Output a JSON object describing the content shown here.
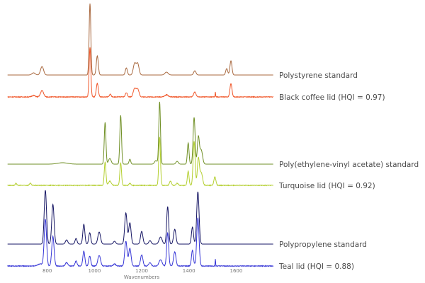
{
  "chart_data": {
    "type": "line",
    "title": "",
    "xlabel": "Wavenumbers",
    "ylabel": "",
    "xlim": [
      632,
      1757
    ],
    "xticks": [
      800,
      1000,
      1200,
      1400,
      1600
    ],
    "grid": false,
    "legend": "right, inline labels beside each trace",
    "peak_model": "gaussian sum, intensity in arbitrary units, width in wavenumbers",
    "series": [
      {
        "name": "Polystyrene standard",
        "color": "#a8683e",
        "peaks": [
          [
            742,
            3,
            10
          ],
          [
            778,
            12,
            9
          ],
          [
            981,
            101,
            5
          ],
          [
            1012,
            27,
            6
          ],
          [
            1135,
            10,
            6
          ],
          [
            1170,
            16,
            8
          ],
          [
            1183,
            16,
            8
          ],
          [
            1305,
            4,
            10
          ],
          [
            1425,
            6,
            7
          ],
          [
            1560,
            9,
            6
          ],
          [
            1578,
            20,
            6
          ]
        ]
      },
      {
        "name": "Black coffee lid (HQI = 0.97)",
        "color": "#f0572a",
        "peaks": [
          [
            742,
            2,
            10
          ],
          [
            778,
            9,
            9
          ],
          [
            981,
            70,
            5
          ],
          [
            1012,
            19,
            6
          ],
          [
            1067,
            4,
            5
          ],
          [
            1135,
            6,
            6
          ],
          [
            1170,
            12,
            8
          ],
          [
            1183,
            11,
            8
          ],
          [
            1305,
            3,
            10
          ],
          [
            1425,
            7,
            7
          ],
          [
            1512,
            7,
            1.5
          ],
          [
            1578,
            19,
            6
          ]
        ]
      },
      {
        "name": "Poly(ethylene-vinyl acetate) standard",
        "color": "#6f8f24",
        "peaks": [
          [
            865,
            2,
            30
          ],
          [
            1045,
            59,
            5
          ],
          [
            1065,
            8,
            8
          ],
          [
            1111,
            69,
            5
          ],
          [
            1150,
            7,
            5
          ],
          [
            1260,
            5,
            8
          ],
          [
            1276,
            88,
            5
          ],
          [
            1350,
            4,
            7
          ],
          [
            1397,
            30,
            5
          ],
          [
            1422,
            66,
            6
          ],
          [
            1440,
            38,
            6
          ],
          [
            1452,
            20,
            8
          ]
        ]
      },
      {
        "name": "Turquoise lid (HQI = 0.92)",
        "color": "#b4cf30",
        "peaks": [
          [
            668,
            3,
            4
          ],
          [
            728,
            3,
            5
          ],
          [
            1045,
            33,
            5
          ],
          [
            1065,
            6,
            8
          ],
          [
            1111,
            32,
            5
          ],
          [
            1150,
            3,
            5
          ],
          [
            1276,
            68,
            5
          ],
          [
            1322,
            6,
            6
          ],
          [
            1350,
            3,
            6
          ],
          [
            1397,
            20,
            5
          ],
          [
            1422,
            62,
            6
          ],
          [
            1440,
            38,
            6
          ],
          [
            1452,
            18,
            8
          ],
          [
            1510,
            12,
            6
          ]
        ]
      },
      {
        "name": "Polypropylene standard",
        "color": "#161664",
        "peaks": [
          [
            792,
            76,
            7
          ],
          [
            824,
            56,
            7
          ],
          [
            882,
            6,
            7
          ],
          [
            922,
            8,
            6
          ],
          [
            955,
            28,
            6
          ],
          [
            980,
            16,
            6
          ],
          [
            1020,
            17,
            8
          ],
          [
            1085,
            4,
            7
          ],
          [
            1133,
            44,
            7
          ],
          [
            1150,
            30,
            7
          ],
          [
            1200,
            18,
            7
          ],
          [
            1235,
            5,
            7
          ],
          [
            1280,
            10,
            9
          ],
          [
            1310,
            53,
            6
          ],
          [
            1340,
            21,
            7
          ],
          [
            1415,
            24,
            6
          ],
          [
            1438,
            74,
            7
          ]
        ]
      },
      {
        "name": "Teal lid (HQI = 0.88)",
        "color": "#3636d6",
        "peaks": [
          [
            770,
            3,
            15
          ],
          [
            792,
            66,
            7
          ],
          [
            824,
            42,
            7
          ],
          [
            882,
            5,
            7
          ],
          [
            922,
            7,
            6
          ],
          [
            955,
            21,
            6
          ],
          [
            980,
            14,
            6
          ],
          [
            1020,
            15,
            8
          ],
          [
            1085,
            3,
            7
          ],
          [
            1133,
            35,
            7
          ],
          [
            1150,
            25,
            7
          ],
          [
            1200,
            16,
            7
          ],
          [
            1235,
            5,
            7
          ],
          [
            1280,
            9,
            9
          ],
          [
            1310,
            47,
            6
          ],
          [
            1340,
            20,
            7
          ],
          [
            1415,
            22,
            6
          ],
          [
            1438,
            68,
            7
          ],
          [
            1512,
            10,
            1.5
          ]
        ]
      }
    ]
  }
}
